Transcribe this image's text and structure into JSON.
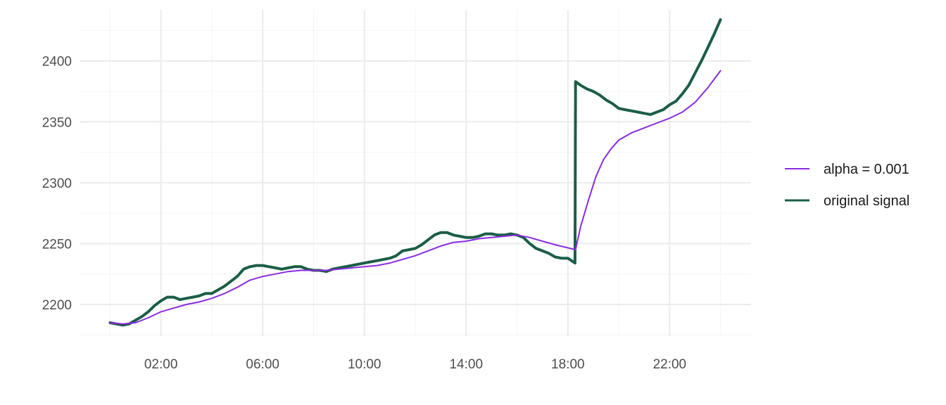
{
  "chart_data": {
    "type": "line",
    "title": "",
    "xlabel": "",
    "ylabel": "",
    "x_tick_labels": [
      "02:00",
      "06:00",
      "10:00",
      "14:00",
      "18:00",
      "22:00"
    ],
    "x_tick_hours": [
      2,
      6,
      10,
      14,
      18,
      22
    ],
    "y_ticks": [
      2200,
      2250,
      2300,
      2350,
      2400
    ],
    "xlim_hours": [
      -1.2,
      25.2
    ],
    "ylim": [
      2174,
      2442
    ],
    "grid": true,
    "legend_position": "right",
    "series": [
      {
        "name": "alpha = 0.001",
        "color": "#8A2BE2",
        "points": [
          [
            0,
            2185
          ],
          [
            0.5,
            2184
          ],
          [
            1,
            2185
          ],
          [
            1.5,
            2189
          ],
          [
            2,
            2194
          ],
          [
            2.5,
            2197
          ],
          [
            3,
            2200
          ],
          [
            3.5,
            2202
          ],
          [
            4,
            2205
          ],
          [
            4.5,
            2209
          ],
          [
            5,
            2214
          ],
          [
            5.5,
            2220
          ],
          [
            6,
            2223
          ],
          [
            6.5,
            2225
          ],
          [
            7,
            2227
          ],
          [
            7.5,
            2228
          ],
          [
            8,
            2228
          ],
          [
            8.5,
            2228
          ],
          [
            9,
            2229
          ],
          [
            9.5,
            2230
          ],
          [
            10,
            2231
          ],
          [
            10.5,
            2232
          ],
          [
            11,
            2234
          ],
          [
            11.5,
            2237
          ],
          [
            12,
            2240
          ],
          [
            12.5,
            2244
          ],
          [
            13,
            2248
          ],
          [
            13.5,
            2251
          ],
          [
            14,
            2252
          ],
          [
            14.5,
            2254
          ],
          [
            15,
            2255
          ],
          [
            15.5,
            2256
          ],
          [
            16,
            2257
          ],
          [
            16.5,
            2255
          ],
          [
            17,
            2252
          ],
          [
            17.5,
            2249
          ],
          [
            18.3,
            2245
          ],
          [
            18.5,
            2264
          ],
          [
            18.8,
            2285
          ],
          [
            19.1,
            2305
          ],
          [
            19.4,
            2319
          ],
          [
            19.7,
            2328
          ],
          [
            20,
            2335
          ],
          [
            20.5,
            2341
          ],
          [
            21,
            2345
          ],
          [
            21.5,
            2349
          ],
          [
            22,
            2353
          ],
          [
            22.5,
            2358
          ],
          [
            23,
            2366
          ],
          [
            23.5,
            2378
          ],
          [
            24,
            2392
          ]
        ]
      },
      {
        "name": "original signal",
        "color": "#1B5E45",
        "points": [
          [
            0,
            2185
          ],
          [
            0.25,
            2184
          ],
          [
            0.5,
            2183
          ],
          [
            0.75,
            2184
          ],
          [
            1,
            2187
          ],
          [
            1.25,
            2190
          ],
          [
            1.5,
            2194
          ],
          [
            1.75,
            2199
          ],
          [
            2,
            2203
          ],
          [
            2.25,
            2206
          ],
          [
            2.5,
            2206
          ],
          [
            2.75,
            2204
          ],
          [
            3,
            2205
          ],
          [
            3.25,
            2206
          ],
          [
            3.5,
            2207
          ],
          [
            3.75,
            2209
          ],
          [
            4,
            2209
          ],
          [
            4.25,
            2212
          ],
          [
            4.5,
            2215
          ],
          [
            4.75,
            2219
          ],
          [
            5,
            2223
          ],
          [
            5.25,
            2229
          ],
          [
            5.5,
            2231
          ],
          [
            5.75,
            2232
          ],
          [
            6,
            2232
          ],
          [
            6.25,
            2231
          ],
          [
            6.5,
            2230
          ],
          [
            6.75,
            2229
          ],
          [
            7,
            2230
          ],
          [
            7.25,
            2231
          ],
          [
            7.5,
            2231
          ],
          [
            7.75,
            2229
          ],
          [
            8,
            2228
          ],
          [
            8.25,
            2228
          ],
          [
            8.5,
            2227
          ],
          [
            8.75,
            2229
          ],
          [
            9,
            2230
          ],
          [
            9.25,
            2231
          ],
          [
            9.5,
            2232
          ],
          [
            9.75,
            2233
          ],
          [
            10,
            2234
          ],
          [
            10.25,
            2235
          ],
          [
            10.5,
            2236
          ],
          [
            10.75,
            2237
          ],
          [
            11,
            2238
          ],
          [
            11.25,
            2240
          ],
          [
            11.5,
            2244
          ],
          [
            11.75,
            2245
          ],
          [
            12,
            2246
          ],
          [
            12.25,
            2249
          ],
          [
            12.5,
            2253
          ],
          [
            12.75,
            2257
          ],
          [
            13,
            2259
          ],
          [
            13.25,
            2259
          ],
          [
            13.5,
            2257
          ],
          [
            13.75,
            2256
          ],
          [
            14,
            2255
          ],
          [
            14.25,
            2255
          ],
          [
            14.5,
            2256
          ],
          [
            14.75,
            2258
          ],
          [
            15,
            2258
          ],
          [
            15.25,
            2257
          ],
          [
            15.5,
            2257
          ],
          [
            15.75,
            2258
          ],
          [
            16,
            2257
          ],
          [
            16.25,
            2255
          ],
          [
            16.5,
            2250
          ],
          [
            16.75,
            2246
          ],
          [
            17,
            2244
          ],
          [
            17.25,
            2242
          ],
          [
            17.5,
            2239
          ],
          [
            17.75,
            2238
          ],
          [
            18,
            2238
          ],
          [
            18.28,
            2234
          ],
          [
            18.3,
            2383
          ],
          [
            18.5,
            2380
          ],
          [
            18.75,
            2377
          ],
          [
            19,
            2375
          ],
          [
            19.25,
            2372
          ],
          [
            19.5,
            2368
          ],
          [
            19.75,
            2365
          ],
          [
            20,
            2361
          ],
          [
            20.25,
            2360
          ],
          [
            20.5,
            2359
          ],
          [
            20.75,
            2358
          ],
          [
            21,
            2357
          ],
          [
            21.25,
            2356
          ],
          [
            21.5,
            2358
          ],
          [
            21.75,
            2360
          ],
          [
            22,
            2364
          ],
          [
            22.25,
            2367
          ],
          [
            22.5,
            2373
          ],
          [
            22.75,
            2380
          ],
          [
            23,
            2390
          ],
          [
            23.25,
            2400
          ],
          [
            23.5,
            2411
          ],
          [
            23.75,
            2422
          ],
          [
            24,
            2434
          ]
        ]
      }
    ]
  }
}
